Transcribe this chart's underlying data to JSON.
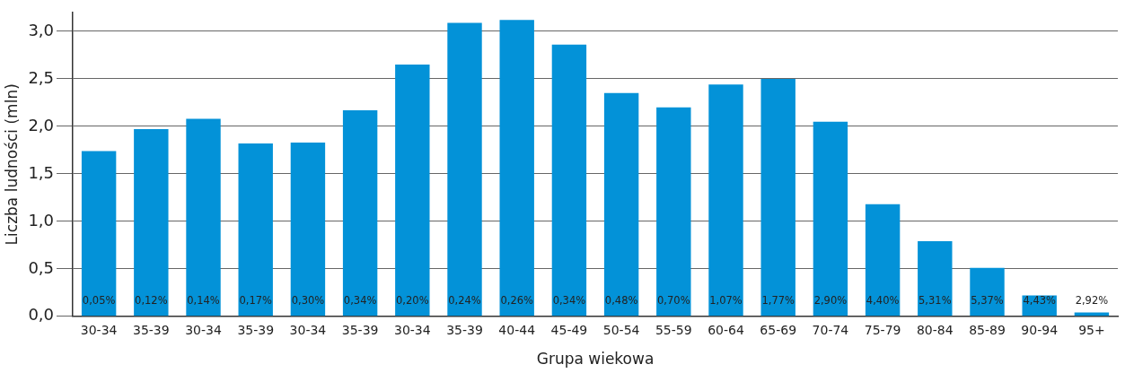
{
  "chart_data": {
    "type": "bar",
    "xlabel": "Grupa wiekowa",
    "ylabel": "Liczba ludności (mln)",
    "categories": [
      "30-34",
      "35-39",
      "30-34",
      "35-39",
      "30-34",
      "35-39",
      "30-34",
      "35-39",
      "40-44",
      "45-49",
      "50-54",
      "55-59",
      "60-64",
      "65-69",
      "70-74",
      "75-79",
      "80-84",
      "85-89",
      "90-94",
      "95+"
    ],
    "values": [
      1.74,
      1.97,
      2.08,
      1.82,
      1.83,
      2.17,
      2.65,
      3.09,
      3.12,
      2.86,
      2.35,
      2.2,
      2.44,
      2.5,
      2.05,
      1.18,
      0.79,
      0.51,
      0.22,
      0.04
    ],
    "annotations": [
      "0,05%",
      "0,12%",
      "0,14%",
      "0,17%",
      "0,30%",
      "0,34%",
      "0,20%",
      "0,24%",
      "0,26%",
      "0,34%",
      "0,48%",
      "0,70%",
      "1,07%",
      "1,77%",
      "2,90%",
      "4,40%",
      "5,31%",
      "5,37%",
      "4,43%",
      "2,92%"
    ],
    "color": "#0392d8",
    "ylim": [
      0,
      3.2
    ],
    "yticks": [
      {
        "value": 0,
        "label": "0,0"
      },
      {
        "value": 0.5,
        "label": "0,5"
      },
      {
        "value": 1,
        "label": "1,0"
      },
      {
        "value": 1.5,
        "label": "1,5"
      },
      {
        "value": 2,
        "label": "2,0"
      },
      {
        "value": 2.5,
        "label": "2,5"
      },
      {
        "value": 3,
        "label": "3,0"
      }
    ],
    "grid": "y",
    "legend": false
  }
}
